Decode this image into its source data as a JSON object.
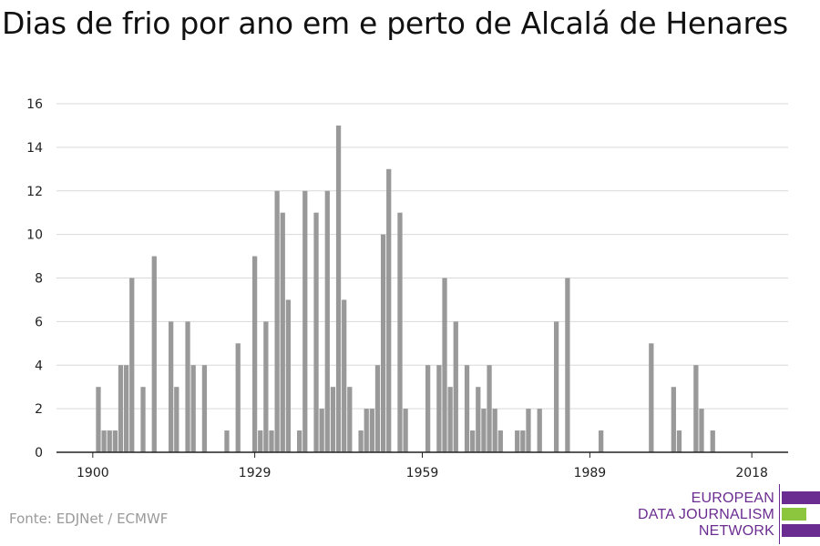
{
  "chart_data": {
    "type": "bar",
    "title": "Dias de frio por ano em e perto de Alcalá de Henares",
    "x_tick_labels": [
      "1900",
      "1929",
      "1959",
      "1989",
      "2018"
    ],
    "x_ticks": [
      1900,
      1929,
      1959,
      1989,
      2018
    ],
    "xlim": [
      1893.5,
      2024.5
    ],
    "ylim": [
      0,
      16
    ],
    "y_ticks": [
      0,
      2,
      4,
      6,
      8,
      10,
      12,
      14,
      16
    ],
    "grid": true,
    "bar_color": "#999999",
    "x": [
      1901,
      1902,
      1903,
      1904,
      1905,
      1906,
      1907,
      1909,
      1911,
      1914,
      1915,
      1917,
      1918,
      1920,
      1924,
      1926,
      1929,
      1930,
      1931,
      1932,
      1933,
      1934,
      1935,
      1937,
      1938,
      1940,
      1941,
      1942,
      1943,
      1944,
      1945,
      1946,
      1948,
      1949,
      1950,
      1951,
      1952,
      1953,
      1955,
      1956,
      1960,
      1962,
      1963,
      1964,
      1965,
      1967,
      1968,
      1969,
      1970,
      1971,
      1972,
      1973,
      1976,
      1977,
      1978,
      1980,
      1983,
      1985,
      1991,
      2000,
      2004,
      2005,
      2008,
      2009,
      2011
    ],
    "values": [
      3,
      1,
      1,
      1,
      4,
      4,
      8,
      3,
      9,
      6,
      3,
      6,
      4,
      4,
      1,
      5,
      9,
      1,
      6,
      1,
      12,
      11,
      7,
      1,
      12,
      11,
      2,
      12,
      3,
      15,
      7,
      3,
      1,
      2,
      2,
      4,
      10,
      13,
      11,
      2,
      4,
      4,
      8,
      3,
      6,
      4,
      1,
      3,
      2,
      4,
      2,
      1,
      1,
      1,
      2,
      2,
      6,
      8,
      1,
      5,
      3,
      1,
      4,
      2,
      1
    ]
  },
  "source": "Fonte: EDJNet / ECMWF",
  "logo": {
    "line1": "EUROPEAN",
    "line2": "DATA JOURNALISM",
    "line3": "NETWORK",
    "purple": "#6b2c91",
    "green": "#8cc63f"
  }
}
